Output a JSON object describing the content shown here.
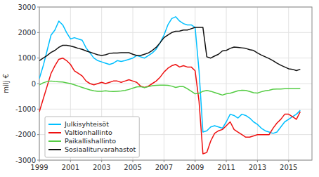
{
  "chart_data": {
    "type": "line",
    "ylabel": "milj €",
    "xlim": [
      1999,
      2016.5
    ],
    "ylim": [
      -3000,
      3000
    ],
    "xticks": [
      1999,
      2001,
      2003,
      2005,
      2007,
      2009,
      2011,
      2013,
      2015
    ],
    "yticks": [
      -3000,
      -2000,
      -1000,
      0,
      1000,
      2000,
      3000
    ],
    "grid": true,
    "legend": "lower left",
    "x": [
      1999.0,
      1999.25,
      1999.5,
      1999.75,
      2000.0,
      2000.25,
      2000.5,
      2000.75,
      2001.0,
      2001.25,
      2001.5,
      2001.75,
      2002.0,
      2002.25,
      2002.5,
      2002.75,
      2003.0,
      2003.25,
      2003.5,
      2003.75,
      2004.0,
      2004.25,
      2004.5,
      2004.75,
      2005.0,
      2005.25,
      2005.5,
      2005.75,
      2006.0,
      2006.25,
      2006.5,
      2006.75,
      2007.0,
      2007.25,
      2007.5,
      2007.75,
      2008.0,
      2008.25,
      2008.5,
      2008.75,
      2009.0,
      2009.25,
      2009.5,
      2009.75,
      2010.0,
      2010.25,
      2010.5,
      2010.75,
      2011.0,
      2011.25,
      2011.5,
      2011.75,
      2012.0,
      2012.25,
      2012.5,
      2012.75,
      2013.0,
      2013.25,
      2013.5,
      2013.75,
      2014.0,
      2014.25,
      2014.5,
      2014.75,
      2015.0,
      2015.25,
      2015.5,
      2015.75
    ],
    "series": [
      {
        "name": "Julkisyhteisöt",
        "color": "#00bfff",
        "values": [
          200,
          700,
          1300,
          1900,
          2100,
          2450,
          2300,
          2000,
          1750,
          1800,
          1750,
          1700,
          1400,
          1200,
          1000,
          900,
          850,
          800,
          750,
          800,
          900,
          870,
          900,
          950,
          1000,
          1100,
          1050,
          1000,
          1100,
          1200,
          1350,
          1600,
          1900,
          2300,
          2550,
          2620,
          2450,
          2350,
          2300,
          2300,
          2200,
          500,
          -1900,
          -1850,
          -1700,
          -1650,
          -1700,
          -1750,
          -1500,
          -1200,
          -1250,
          -1350,
          -1200,
          -1250,
          -1350,
          -1500,
          -1600,
          -1750,
          -1850,
          -1900,
          -1950,
          -1900,
          -1700,
          -1500,
          -1400,
          -1300,
          -1200,
          -1050
        ]
      },
      {
        "name": "Valtionhallinto",
        "color": "#ee1111",
        "values": [
          -1100,
          -600,
          -100,
          400,
          700,
          950,
          1000,
          900,
          750,
          500,
          400,
          300,
          100,
          0,
          -50,
          0,
          50,
          0,
          50,
          100,
          100,
          50,
          100,
          150,
          100,
          50,
          -100,
          -150,
          -100,
          0,
          100,
          250,
          450,
          600,
          700,
          750,
          650,
          700,
          650,
          650,
          500,
          -700,
          -2750,
          -2700,
          -2250,
          -1950,
          -1850,
          -1800,
          -1650,
          -1500,
          -1800,
          -1900,
          -2000,
          -2100,
          -2100,
          -2050,
          -2000,
          -2000,
          -2000,
          -2000,
          -1750,
          -1550,
          -1400,
          -1200,
          -1200,
          -1300,
          -1400,
          -1100
        ]
      },
      {
        "name": "Paikallishallinto",
        "color": "#55cc44",
        "values": [
          -50,
          30,
          80,
          100,
          80,
          70,
          60,
          30,
          0,
          -50,
          -100,
          -150,
          -200,
          -250,
          -280,
          -300,
          -300,
          -280,
          -300,
          -310,
          -300,
          -290,
          -270,
          -230,
          -180,
          -130,
          -120,
          -160,
          -120,
          -80,
          -70,
          -60,
          -60,
          -70,
          -100,
          -150,
          -120,
          -120,
          -200,
          -300,
          -400,
          -380,
          -300,
          -270,
          -300,
          -350,
          -400,
          -450,
          -400,
          -380,
          -330,
          -280,
          -260,
          -270,
          -310,
          -360,
          -370,
          -320,
          -280,
          -260,
          -220,
          -210,
          -210,
          -200,
          -200,
          -200,
          -200,
          -190
        ]
      },
      {
        "name": "Sosiaaliturvarahastot",
        "color": "#111111",
        "values": [
          900,
          1000,
          1100,
          1220,
          1300,
          1420,
          1500,
          1500,
          1470,
          1430,
          1380,
          1340,
          1280,
          1230,
          1180,
          1130,
          1100,
          1130,
          1180,
          1200,
          1200,
          1210,
          1210,
          1210,
          1150,
          1100,
          1100,
          1150,
          1200,
          1300,
          1420,
          1600,
          1800,
          1900,
          2000,
          2050,
          2060,
          2100,
          2100,
          2150,
          2200,
          2200,
          2200,
          1050,
          1000,
          1080,
          1150,
          1280,
          1300,
          1380,
          1430,
          1420,
          1400,
          1380,
          1330,
          1300,
          1200,
          1120,
          1050,
          980,
          900,
          800,
          720,
          650,
          580,
          560,
          510,
          560
        ]
      }
    ]
  }
}
